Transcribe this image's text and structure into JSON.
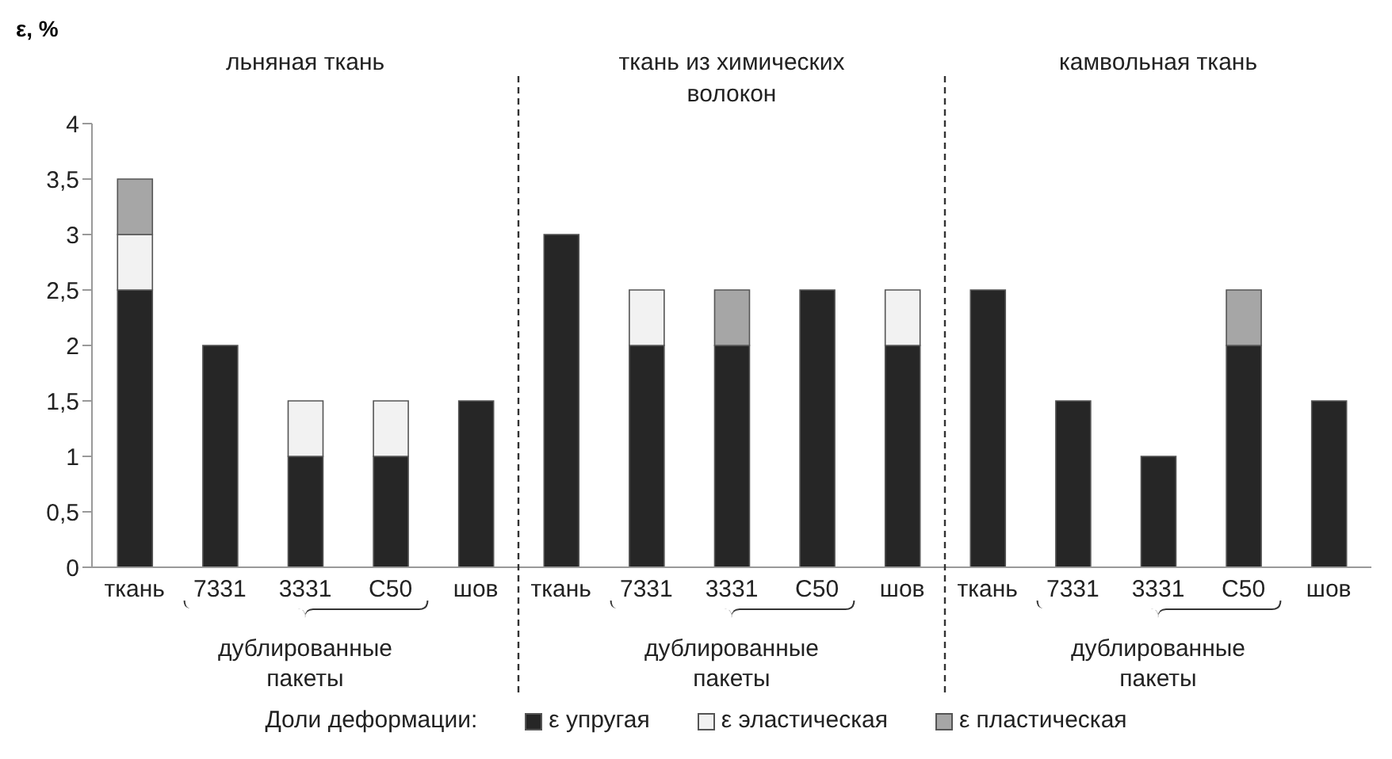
{
  "chart_data": {
    "type": "bar",
    "stacked": true,
    "ylabel": "ε, %",
    "legend_title": "Доли деформации:",
    "legend": "bottom",
    "categories": [
      "ткань",
      "7331",
      "3331",
      "С50",
      "шов",
      "ткань",
      "7331",
      "3331",
      "С50",
      "шов",
      "ткань",
      "7331",
      "3331",
      "С50",
      "шов"
    ],
    "series": [
      {
        "name": "ε упругая",
        "color": "#262626",
        "values": [
          2.5,
          2,
          1,
          1,
          1.5,
          3,
          2,
          2,
          2.5,
          2,
          2.5,
          1.5,
          1,
          2,
          1.5
        ]
      },
      {
        "name": "ε эластическая",
        "color": "#f2f2f2",
        "values": [
          0.5,
          null,
          0.5,
          0.5,
          null,
          null,
          0.5,
          null,
          null,
          0.5,
          null,
          null,
          null,
          null,
          null
        ]
      },
      {
        "name": "ε пластическая",
        "color": "#a6a6a6",
        "values": [
          0.5,
          null,
          null,
          null,
          null,
          null,
          null,
          0.5,
          null,
          null,
          null,
          null,
          null,
          0.5,
          null
        ]
      }
    ],
    "ylim": [
      0,
      4
    ],
    "yticks": [
      0,
      {
        "value": 0.5,
        "label": "0,5"
      },
      1,
      {
        "value": 1.5,
        "label": "1,5"
      },
      2,
      {
        "value": 2.5,
        "label": "2,5"
      },
      3,
      {
        "value": 3.5,
        "label": "3,5"
      },
      4
    ],
    "annotations": [
      "льняная ткань",
      "ткань из химических волокон",
      "камвольная ткань",
      "дублированные пакеты",
      "дублированные пакеты",
      "дублированные пакеты"
    ]
  }
}
